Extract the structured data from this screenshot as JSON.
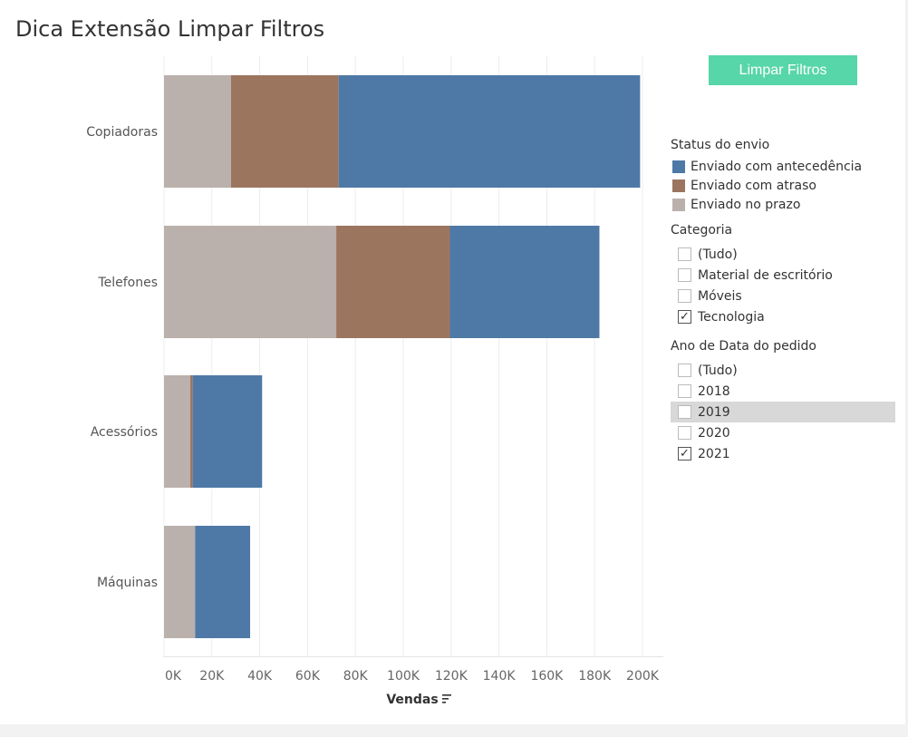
{
  "title": "Dica Extensão Limpar Filtros",
  "clear_button": "Limpar Filtros",
  "legend": {
    "title": "Status do envio",
    "items": [
      {
        "label": "Enviado com antecedência",
        "color": "#4e79a7"
      },
      {
        "label": "Enviado com atraso",
        "color": "#9c755f"
      },
      {
        "label": "Enviado no prazo",
        "color": "#bab0ac"
      }
    ]
  },
  "filters": [
    {
      "title": "Categoria",
      "options": [
        {
          "label": "(Tudo)",
          "checked": false
        },
        {
          "label": "Material de escritório",
          "checked": false
        },
        {
          "label": "Móveis",
          "checked": false
        },
        {
          "label": "Tecnologia",
          "checked": true
        }
      ]
    },
    {
      "title": "Ano de Data do pedido",
      "options": [
        {
          "label": "(Tudo)",
          "checked": false
        },
        {
          "label": "2018",
          "checked": false
        },
        {
          "label": "2019",
          "checked": false,
          "hover": true
        },
        {
          "label": "2020",
          "checked": false
        },
        {
          "label": "2021",
          "checked": true
        }
      ]
    }
  ],
  "chart_data": {
    "type": "bar",
    "orientation": "horizontal",
    "stacked": true,
    "categories": [
      "Copiadoras",
      "Telefones",
      "Acessórios",
      "Máquinas"
    ],
    "series": [
      {
        "name": "Enviado no prazo",
        "values": [
          28000,
          72000,
          11000,
          13000
        ],
        "color": "#bab0ac"
      },
      {
        "name": "Enviado com atraso",
        "values": [
          45000,
          47500,
          1000,
          0
        ],
        "color": "#9c755f"
      },
      {
        "name": "Enviado com antecedência",
        "values": [
          126000,
          62500,
          29000,
          23000
        ],
        "color": "#4e79a7"
      }
    ],
    "xlabel": "Vendas",
    "xlim": [
      0,
      210000
    ],
    "x_ticks": [
      "0K",
      "20K",
      "40K",
      "60K",
      "80K",
      "100K",
      "120K",
      "140K",
      "160K",
      "180K",
      "200K"
    ],
    "grid": true
  }
}
